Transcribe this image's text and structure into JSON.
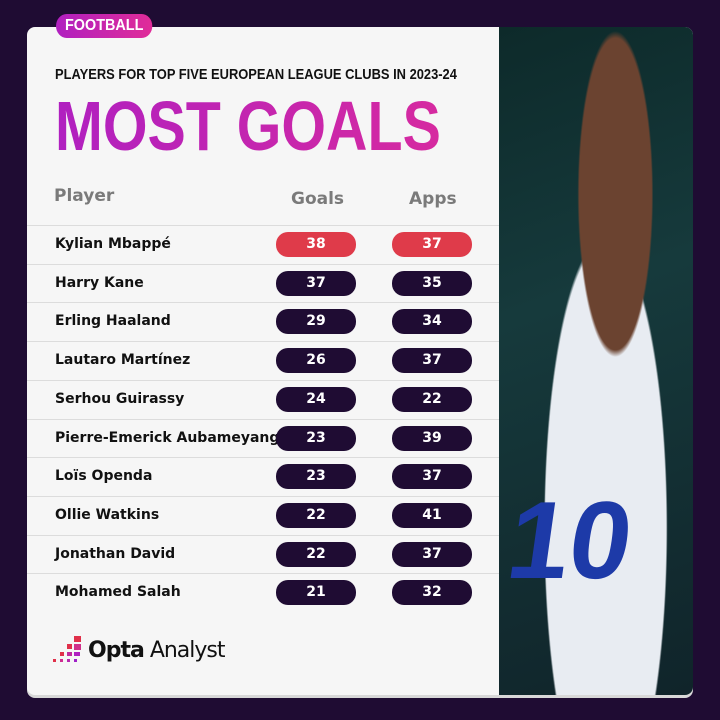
{
  "tag": "FOOTBALL",
  "subtitle": "PLAYERS FOR TOP FIVE EUROPEAN LEAGUE CLUBS IN 2023-24",
  "title": "MOST GOALS",
  "logo": {
    "bold": "Opta",
    "light": "Analyst"
  },
  "colors": {
    "accent": "#c024b0",
    "highlight": "#df3b4a",
    "pill": "#1f0c33",
    "background": "#1f0c33"
  },
  "chart_data": {
    "type": "table",
    "columns": [
      "Player",
      "Goals",
      "Apps"
    ],
    "rows": [
      {
        "player": "Kylian Mbappé",
        "goals": "38",
        "apps": "37",
        "highlight": true
      },
      {
        "player": "Harry Kane",
        "goals": "37",
        "apps": "35"
      },
      {
        "player": "Erling Haaland",
        "goals": "29",
        "apps": "34"
      },
      {
        "player": "Lautaro Martínez",
        "goals": "26",
        "apps": "37"
      },
      {
        "player": "Serhou Guirassy",
        "goals": "24",
        "apps": "22"
      },
      {
        "player": "Pierre-Emerick Aubameyang",
        "goals": "23",
        "apps": "39"
      },
      {
        "player": "Loïs Openda",
        "goals": "23",
        "apps": "37"
      },
      {
        "player": "Ollie Watkins",
        "goals": "22",
        "apps": "41"
      },
      {
        "player": "Jonathan David",
        "goals": "22",
        "apps": "37"
      },
      {
        "player": "Mohamed Salah",
        "goals": "21",
        "apps": "32"
      }
    ]
  }
}
